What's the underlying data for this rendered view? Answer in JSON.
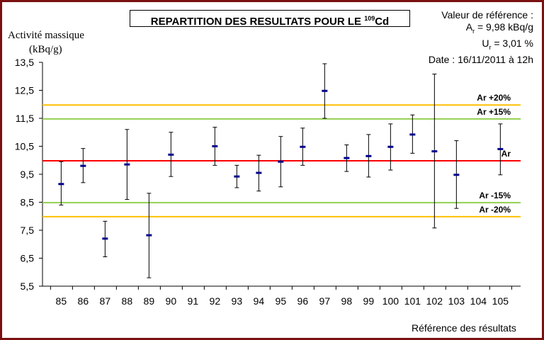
{
  "title_text": "REPARTITION DES RESULTATS POUR LE",
  "title_isotope_sup": "109",
  "title_element": "Cd",
  "reference": {
    "heading": "Valeur de référence :",
    "ar_symbol": "A",
    "ar_sub": "r",
    "ar_value": " =  9,98 kBq/g",
    "ur_symbol": "U",
    "ur_sub": "r",
    "ur_value": " = 3,01 %",
    "date": "Date : 16/11/2011 à 12h"
  },
  "chart_data": {
    "type": "scatter",
    "title": "REPARTITION DES RESULTATS POUR LE 109Cd",
    "ylabel_line1": "Activité massique",
    "ylabel_line2": "(kBq/g)",
    "xlabel": "Référence des résultats",
    "ylim": [
      5.5,
      13.5
    ],
    "yticks": [
      5.5,
      6.5,
      7.5,
      8.5,
      9.5,
      10.5,
      11.5,
      12.5,
      13.5
    ],
    "ytick_labels": [
      "5,5",
      "6,5",
      "7,5",
      "8,5",
      "9,5",
      "10,5",
      "11,5",
      "12,5",
      "13,5"
    ],
    "grid": false,
    "categories": [
      "85",
      "86",
      "87",
      "88",
      "89",
      "90",
      "91",
      "92",
      "93",
      "94",
      "95",
      "96",
      "97",
      "98",
      "99",
      "100",
      "101",
      "102",
      "103",
      "104",
      "105"
    ],
    "points": [
      {
        "ref": "85",
        "value": 9.15,
        "low": 8.4,
        "high": 9.95
      },
      {
        "ref": "86",
        "value": 9.8,
        "low": 9.2,
        "high": 10.42
      },
      {
        "ref": "87",
        "value": 7.2,
        "low": 6.55,
        "high": 7.82
      },
      {
        "ref": "88",
        "value": 9.85,
        "low": 8.6,
        "high": 11.1
      },
      {
        "ref": "89",
        "value": 7.32,
        "low": 5.8,
        "high": 8.82
      },
      {
        "ref": "90",
        "value": 10.2,
        "low": 9.42,
        "high": 11.0
      },
      {
        "ref": "92",
        "value": 10.5,
        "low": 9.82,
        "high": 11.18
      },
      {
        "ref": "93",
        "value": 9.42,
        "low": 9.02,
        "high": 9.82
      },
      {
        "ref": "94",
        "value": 9.55,
        "low": 8.9,
        "high": 10.18
      },
      {
        "ref": "95",
        "value": 9.95,
        "low": 9.05,
        "high": 10.85
      },
      {
        "ref": "96",
        "value": 10.48,
        "low": 9.82,
        "high": 11.15
      },
      {
        "ref": "97",
        "value": 12.48,
        "low": 11.5,
        "high": 13.45
      },
      {
        "ref": "98",
        "value": 10.08,
        "low": 9.6,
        "high": 10.55
      },
      {
        "ref": "99",
        "value": 10.15,
        "low": 9.4,
        "high": 10.92
      },
      {
        "ref": "100",
        "value": 10.48,
        "low": 9.65,
        "high": 11.3
      },
      {
        "ref": "101",
        "value": 10.92,
        "low": 10.25,
        "high": 11.62
      },
      {
        "ref": "102",
        "value": 10.32,
        "low": 7.58,
        "high": 13.08
      },
      {
        "ref": "103",
        "value": 9.48,
        "low": 8.28,
        "high": 10.7
      },
      {
        "ref": "105",
        "value": 10.4,
        "low": 9.48,
        "high": 11.3
      }
    ],
    "reference_lines": [
      {
        "label": "Ar +20%",
        "value": 11.976,
        "color": "#ffc000"
      },
      {
        "label": "Ar +15%",
        "value": 11.477,
        "color": "#92d050"
      },
      {
        "label": "Ar",
        "value": 9.98,
        "color": "#ff0000"
      },
      {
        "label": "Ar -15%",
        "value": 8.483,
        "color": "#92d050"
      },
      {
        "label": "Ar -20%",
        "value": 7.984,
        "color": "#ffc000"
      }
    ],
    "marker_color": "#00008b",
    "errorbar_color": "#000000"
  }
}
